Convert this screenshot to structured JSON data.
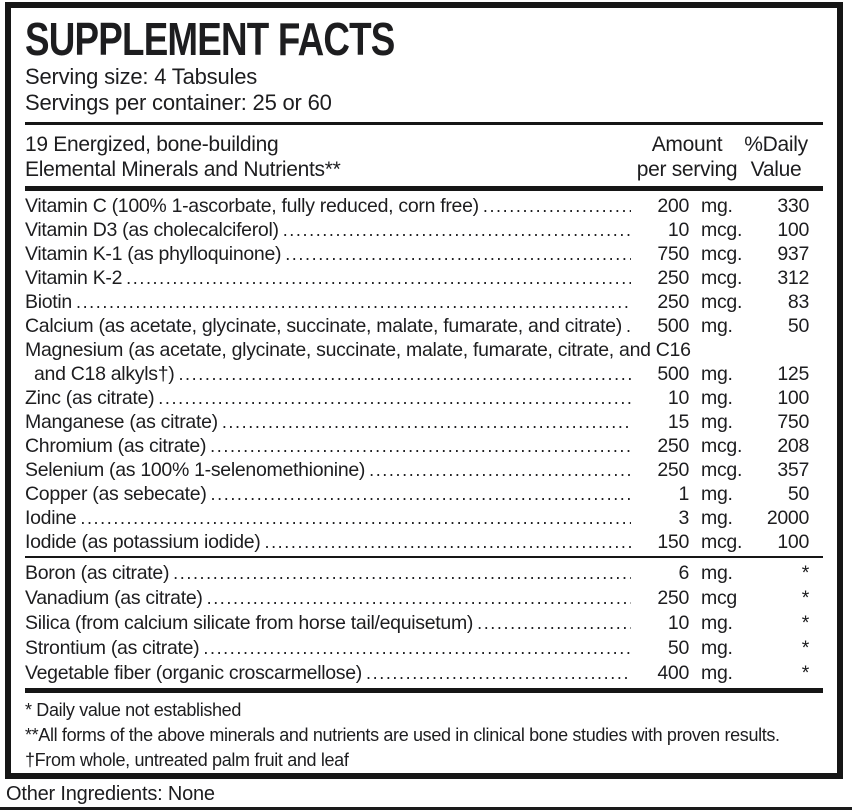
{
  "header": {
    "title": "SUPPLEMENT FACTS",
    "serving_size": "Serving size: 4 Tabsules",
    "servings_per_container": "Servings per container: 25 or 60"
  },
  "columns": {
    "left_line1": "19 Energized, bone-building",
    "left_line2": "Elemental Minerals and Nutrients**",
    "amount_line1": "Amount",
    "amount_line2": "per serving",
    "dv_line1": "%Daily",
    "dv_line2": "Value"
  },
  "main_rows": [
    {
      "name": "Vitamin C (100% 1-ascorbate, fully reduced, corn free)",
      "amount": "200",
      "unit": "mg.",
      "dv": "330"
    },
    {
      "name": "Vitamin D3 (as cholecalciferol)",
      "amount": "10",
      "unit": "mcg.",
      "dv": "100"
    },
    {
      "name": "Vitamin K-1 (as phylloquinone)",
      "amount": "750",
      "unit": "mcg.",
      "dv": "937"
    },
    {
      "name": "Vitamin K-2",
      "amount": "250",
      "unit": "mcg.",
      "dv": "312"
    },
    {
      "name": "Biotin",
      "amount": "250",
      "unit": "mcg.",
      "dv": "83"
    },
    {
      "name": "Calcium (as acetate, glycinate, succinate, malate, fumarate, and citrate)",
      "amount": "500",
      "unit": "mg.",
      "dv": "50"
    },
    {
      "name": "Magnesium (as acetate, glycinate, succinate, malate, fumarate, citrate, and C16",
      "name2": "and C18 alkyls†)",
      "amount": "500",
      "unit": "mg.",
      "dv": "125"
    },
    {
      "name": "Zinc (as citrate)",
      "amount": "10",
      "unit": "mg.",
      "dv": "100"
    },
    {
      "name": "Manganese (as citrate)",
      "amount": "15",
      "unit": "mg.",
      "dv": "750"
    },
    {
      "name": "Chromium (as citrate)",
      "amount": "250",
      "unit": "mcg.",
      "dv": "208"
    },
    {
      "name": "Selenium (as 100% 1-selenomethionine)",
      "amount": "250",
      "unit": "mcg.",
      "dv": "357"
    },
    {
      "name": "Copper (as sebecate)",
      "amount": "1",
      "unit": "mg.",
      "dv": "50"
    },
    {
      "name": "Iodine",
      "amount": "3",
      "unit": "mg.",
      "dv": "2000"
    },
    {
      "name": "Iodide (as potassium iodide)",
      "amount": "150",
      "unit": "mcg.",
      "dv": "100"
    }
  ],
  "secondary_rows": [
    {
      "name": "Boron (as citrate)",
      "amount": "6",
      "unit": "mg.",
      "dv": "*"
    },
    {
      "name": "Vanadium (as citrate)",
      "amount": "250",
      "unit": "mcg",
      "dv": "*"
    },
    {
      "name": "Silica (from calcium silicate from horse tail/equisetum)",
      "amount": "10",
      "unit": "mg.",
      "dv": "*"
    },
    {
      "name": "Strontium (as citrate)",
      "amount": "50",
      "unit": "mg.",
      "dv": "*"
    },
    {
      "name": "Vegetable fiber (organic croscarmellose)",
      "amount": "400",
      "unit": "mg.",
      "dv": "*"
    }
  ],
  "footnotes": [
    "* Daily value not established",
    "**All forms of the above minerals and nutrients are used in clinical bone studies with proven results.",
    "†From whole, untreated palm fruit and leaf"
  ],
  "other_ingredients": "Other Ingredients: None"
}
